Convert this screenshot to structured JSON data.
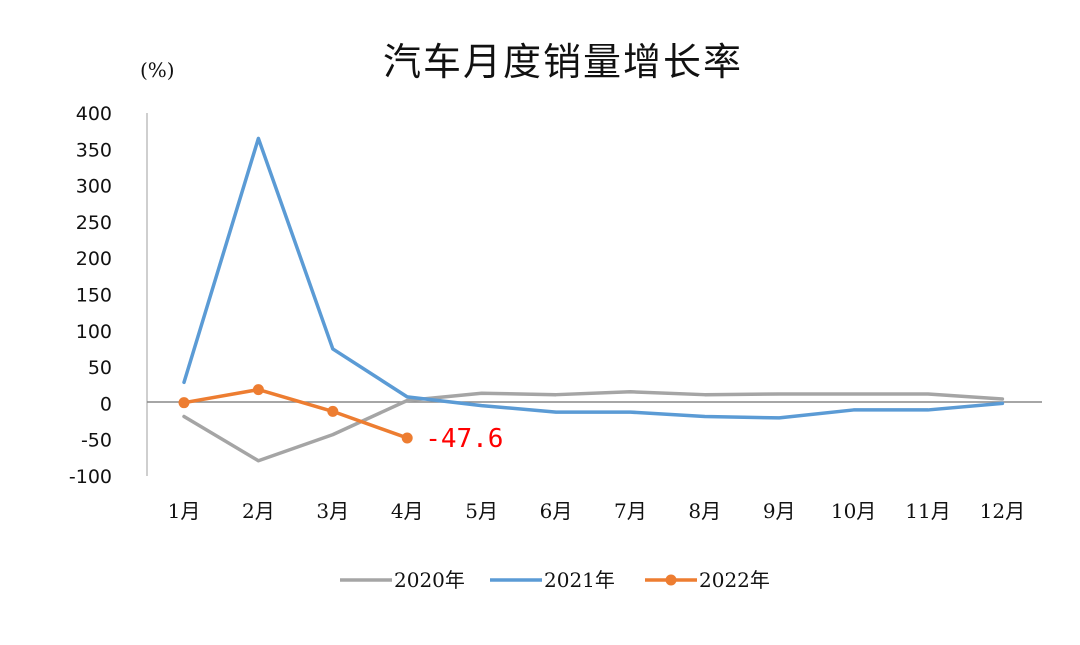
{
  "chart_data": {
    "type": "line",
    "title": "汽车月度销量增长率",
    "ylabel": "(%)",
    "xlabel": "",
    "categories": [
      "1月",
      "2月",
      "3月",
      "4月",
      "5月",
      "6月",
      "7月",
      "8月",
      "9月",
      "10月",
      "11月",
      "12月"
    ],
    "ylim": [
      -100,
      400
    ],
    "yticks": [
      "400",
      "350",
      "300",
      "250",
      "200",
      "150",
      "100",
      "50",
      "0",
      "-50",
      "-100"
    ],
    "grid": false,
    "legend_position": "bottom",
    "series": [
      {
        "name": "2020年",
        "color": "#a5a5a5",
        "markers": false,
        "values": [
          -18,
          -79,
          -43,
          4,
          14,
          12,
          16,
          12,
          13,
          13,
          13,
          6
        ]
      },
      {
        "name": "2021年",
        "color": "#5b9bd5",
        "markers": false,
        "values": [
          29,
          365,
          75,
          9,
          -3,
          -12,
          -12,
          -18,
          -20,
          -9,
          -9,
          0
        ]
      },
      {
        "name": "2022年",
        "color": "#ed7d31",
        "markers": true,
        "values": [
          1,
          19,
          -11,
          -47.6,
          null,
          null,
          null,
          null,
          null,
          null,
          null,
          null
        ]
      }
    ],
    "annotations": [
      {
        "text": "-47.6",
        "series": "2022年",
        "category": "4月",
        "color": "#ff0000"
      }
    ]
  }
}
